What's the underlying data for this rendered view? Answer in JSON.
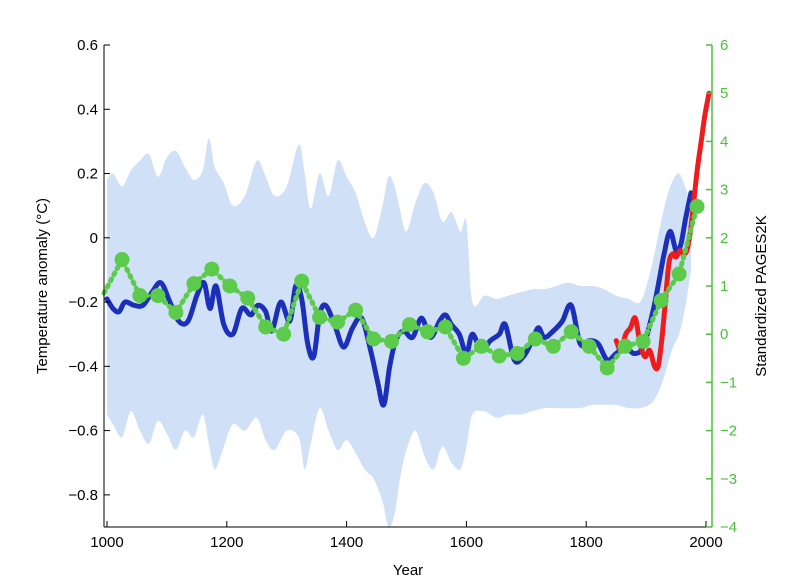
{
  "chart_data": {
    "type": "line",
    "xlabel": "Year",
    "ylabel": "Temperature anomaly (°C)",
    "y2label": "Standardized PAGES2K",
    "xlim": [
      995,
      2010
    ],
    "ylim": [
      -0.9,
      0.6
    ],
    "y2lim": [
      -4,
      6
    ],
    "x_ticks": [
      1000,
      1200,
      1400,
      1600,
      1800,
      2000
    ],
    "y_ticks": [
      0.6,
      0.4,
      0.2,
      0,
      -0.2,
      -0.4,
      -0.6,
      -0.8
    ],
    "y_tick_labels": [
      "0.6",
      "0.4",
      "0.2",
      "0",
      "−0.2",
      "−0.4",
      "−0.6",
      "−0.8"
    ],
    "y2_ticks": [
      6,
      5,
      4,
      3,
      2,
      1,
      0,
      -1,
      -2,
      -3,
      -4
    ],
    "y2_tick_labels": [
      "6",
      "5",
      "4",
      "3",
      "2",
      "1",
      "0",
      "−1",
      "−2",
      "−3",
      "−4"
    ],
    "grid": false,
    "colors": {
      "uncertainty_band": "#cfe0f7",
      "reconstruction": "#1c2fb8",
      "instrumental": "#ee1c1c",
      "pages2k": "#5ccb4c",
      "right_axis": "#4cbf3c"
    },
    "uncertainty_band": {
      "x": [
        1000,
        1010,
        1025,
        1040,
        1055,
        1070,
        1085,
        1100,
        1115,
        1130,
        1145,
        1160,
        1170,
        1180,
        1195,
        1210,
        1230,
        1250,
        1265,
        1280,
        1300,
        1320,
        1330,
        1340,
        1355,
        1370,
        1385,
        1400,
        1415,
        1430,
        1445,
        1460,
        1470,
        1480,
        1490,
        1500,
        1515,
        1530,
        1545,
        1560,
        1575,
        1590,
        1600,
        1610,
        1630,
        1650,
        1670,
        1690,
        1710,
        1730,
        1750,
        1770,
        1790,
        1810,
        1830,
        1850,
        1870,
        1890,
        1905,
        1915,
        1925,
        1935,
        1945,
        1955,
        1965,
        1975
      ],
      "upper": [
        0.18,
        0.2,
        0.16,
        0.21,
        0.24,
        0.26,
        0.19,
        0.25,
        0.27,
        0.22,
        0.18,
        0.21,
        0.31,
        0.22,
        0.17,
        0.1,
        0.13,
        0.24,
        0.19,
        0.13,
        0.16,
        0.29,
        0.2,
        0.09,
        0.2,
        0.13,
        0.24,
        0.19,
        0.14,
        0.05,
        0.0,
        0.1,
        0.19,
        0.16,
        0.08,
        0.02,
        0.11,
        0.17,
        0.14,
        0.05,
        0.08,
        0.02,
        0.05,
        -0.2,
        -0.18,
        -0.19,
        -0.18,
        -0.17,
        -0.16,
        -0.16,
        -0.15,
        -0.14,
        -0.15,
        -0.15,
        -0.16,
        -0.18,
        -0.19,
        -0.2,
        -0.12,
        -0.04,
        0.05,
        0.13,
        0.18,
        0.2,
        0.16,
        0.1
      ],
      "lower": [
        -0.55,
        -0.58,
        -0.62,
        -0.54,
        -0.6,
        -0.64,
        -0.57,
        -0.61,
        -0.66,
        -0.6,
        -0.62,
        -0.55,
        -0.64,
        -0.72,
        -0.65,
        -0.58,
        -0.6,
        -0.56,
        -0.63,
        -0.66,
        -0.6,
        -0.62,
        -0.72,
        -0.64,
        -0.53,
        -0.6,
        -0.66,
        -0.63,
        -0.67,
        -0.72,
        -0.75,
        -0.82,
        -0.9,
        -0.86,
        -0.74,
        -0.66,
        -0.6,
        -0.68,
        -0.72,
        -0.65,
        -0.7,
        -0.72,
        -0.65,
        -0.55,
        -0.54,
        -0.56,
        -0.55,
        -0.55,
        -0.54,
        -0.53,
        -0.53,
        -0.53,
        -0.53,
        -0.52,
        -0.52,
        -0.52,
        -0.53,
        -0.53,
        -0.52,
        -0.5,
        -0.46,
        -0.4,
        -0.34,
        -0.3,
        -0.22,
        -0.1
      ]
    },
    "series": [
      {
        "style": "line",
        "axis": "left",
        "x": [
          1000,
          1010,
          1020,
          1030,
          1045,
          1060,
          1075,
          1090,
          1105,
          1120,
          1135,
          1150,
          1162,
          1172,
          1182,
          1195,
          1210,
          1225,
          1240,
          1252,
          1265,
          1275,
          1290,
          1305,
          1315,
          1325,
          1335,
          1345,
          1355,
          1365,
          1380,
          1395,
          1410,
          1425,
          1440,
          1452,
          1462,
          1472,
          1482,
          1495,
          1510,
          1525,
          1540,
          1555,
          1565,
          1575,
          1588,
          1600,
          1610,
          1625,
          1640,
          1655,
          1665,
          1680,
          1695,
          1710,
          1720,
          1730,
          1745,
          1760,
          1775,
          1790,
          1805,
          1820,
          1835,
          1850,
          1865,
          1880,
          1895,
          1910,
          1920,
          1930,
          1940,
          1950,
          1958,
          1966,
          1975
        ],
        "y": [
          -0.19,
          -0.22,
          -0.23,
          -0.2,
          -0.21,
          -0.21,
          -0.17,
          -0.14,
          -0.2,
          -0.26,
          -0.26,
          -0.18,
          -0.14,
          -0.22,
          -0.15,
          -0.27,
          -0.3,
          -0.22,
          -0.24,
          -0.21,
          -0.23,
          -0.29,
          -0.2,
          -0.26,
          -0.15,
          -0.19,
          -0.33,
          -0.37,
          -0.24,
          -0.21,
          -0.27,
          -0.34,
          -0.28,
          -0.25,
          -0.35,
          -0.45,
          -0.52,
          -0.4,
          -0.32,
          -0.29,
          -0.31,
          -0.25,
          -0.31,
          -0.26,
          -0.24,
          -0.27,
          -0.3,
          -0.36,
          -0.3,
          -0.35,
          -0.32,
          -0.3,
          -0.27,
          -0.38,
          -0.37,
          -0.32,
          -0.28,
          -0.31,
          -0.29,
          -0.26,
          -0.21,
          -0.33,
          -0.32,
          -0.33,
          -0.38,
          -0.36,
          -0.34,
          -0.36,
          -0.34,
          -0.24,
          -0.15,
          -0.05,
          0.02,
          -0.04,
          -0.02,
          0.06,
          0.14
        ]
      },
      {
        "style": "line",
        "axis": "left",
        "x": [
          1850,
          1858,
          1866,
          1874,
          1882,
          1890,
          1898,
          1906,
          1914,
          1920,
          1926,
          1932,
          1938,
          1944,
          1950,
          1956,
          1962,
          1968,
          1974,
          1980,
          1986,
          1992,
          1998,
          2005
        ],
        "y": [
          -0.32,
          -0.35,
          -0.3,
          -0.28,
          -0.25,
          -0.33,
          -0.37,
          -0.35,
          -0.4,
          -0.4,
          -0.32,
          -0.2,
          -0.08,
          -0.05,
          -0.06,
          -0.04,
          -0.05,
          -0.04,
          0.02,
          0.12,
          0.22,
          0.3,
          0.38,
          0.45
        ]
      },
      {
        "style": "dotted-markers",
        "axis": "right",
        "x": [
          1025,
          1055,
          1085,
          1115,
          1145,
          1175,
          1205,
          1235,
          1265,
          1295,
          1325,
          1355,
          1385,
          1415,
          1445,
          1475,
          1505,
          1535,
          1565,
          1595,
          1625,
          1655,
          1685,
          1715,
          1745,
          1775,
          1805,
          1835,
          1865,
          1895,
          1925,
          1955,
          1985
        ],
        "y": [
          1.55,
          0.8,
          0.8,
          0.45,
          1.05,
          1.35,
          1.0,
          0.75,
          0.15,
          0.0,
          1.1,
          0.35,
          0.25,
          0.5,
          -0.1,
          -0.15,
          0.2,
          0.05,
          0.15,
          -0.5,
          -0.25,
          -0.45,
          -0.4,
          -0.1,
          -0.25,
          0.05,
          -0.25,
          -0.7,
          -0.25,
          -0.15,
          0.7,
          1.25,
          2.65
        ]
      }
    ]
  }
}
